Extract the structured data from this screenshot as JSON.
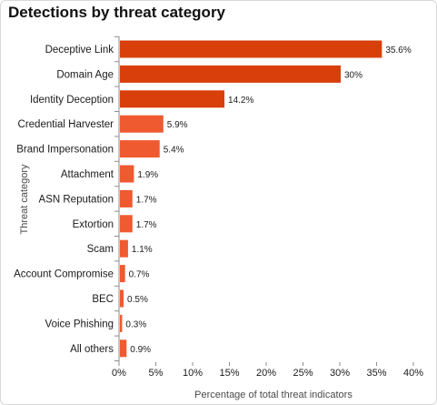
{
  "chart_data": {
    "type": "bar",
    "orientation": "horizontal",
    "title": "Detections by threat category",
    "xlabel": "Percentage of total threat indicators",
    "ylabel": "Threat category",
    "xlim": [
      0,
      40
    ],
    "xticks": [
      "0%",
      "5%",
      "10%",
      "15%",
      "20%",
      "25%",
      "30%",
      "35%",
      "40%"
    ],
    "grid": false,
    "categories": [
      "Deceptive Link",
      "Domain Age",
      "Identity Deception",
      "Credential Harvester",
      "Brand Impersonation",
      "Attachment",
      "ASN Reputation",
      "Extortion",
      "Scam",
      "Account Compromise",
      "BEC",
      "Voice Phishing",
      "All others"
    ],
    "values": [
      35.6,
      30,
      14.2,
      5.9,
      5.4,
      1.9,
      1.7,
      1.7,
      1.1,
      0.7,
      0.5,
      0.3,
      0.9
    ],
    "value_labels": [
      "35.6%",
      "30%",
      "14.2%",
      "5.9%",
      "5.4%",
      "1.9%",
      "1.7%",
      "1.7%",
      "1.1%",
      "0.7%",
      "0.5%",
      "0.3%",
      "0.9%"
    ],
    "colors": {
      "bar_dark": "#d93f0b",
      "bar_light": "#ef5a30",
      "axis": "#8c8c8c"
    }
  }
}
